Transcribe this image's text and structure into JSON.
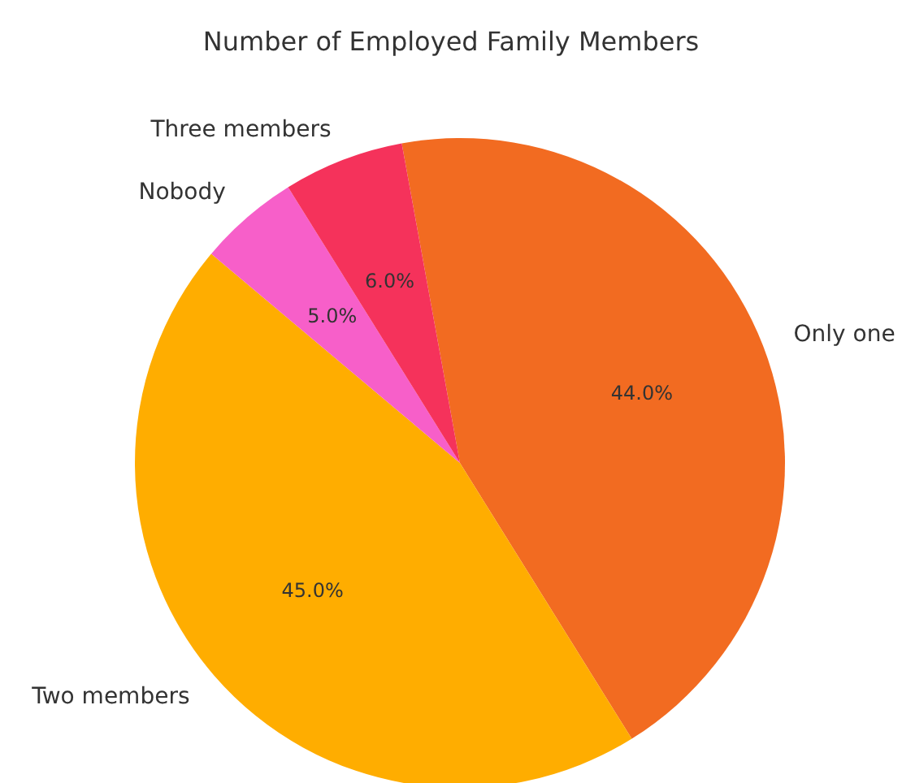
{
  "chart_data": {
    "type": "pie",
    "title": "Number of Employed Family Members",
    "categories": [
      "Only one",
      "Two members",
      "Nobody",
      "Three members"
    ],
    "values": [
      44,
      45,
      5,
      6
    ],
    "colors": [
      "#f26b21",
      "#ffad00",
      "#f75fc9",
      "#f5325b"
    ],
    "value_labels": [
      "44.0%",
      "45.0%",
      "5.0%",
      "6.0%"
    ]
  }
}
